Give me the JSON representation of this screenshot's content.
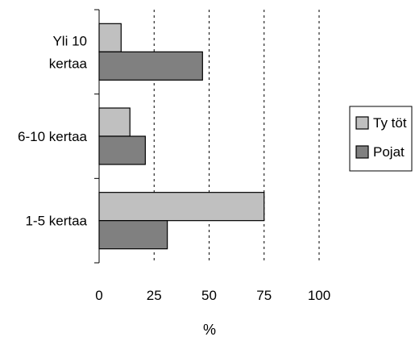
{
  "chart_data": {
    "type": "bar",
    "orientation": "horizontal",
    "categories": [
      {
        "lines": [
          "Yli 10",
          "kertaa"
        ]
      },
      {
        "lines": [
          "6-10 kertaa"
        ]
      },
      {
        "lines": [
          "1-5 kertaa"
        ]
      }
    ],
    "series": [
      {
        "name": "Ty töt",
        "values": [
          10,
          14,
          75
        ],
        "color": "#c0c0c0"
      },
      {
        "name": "Pojat",
        "values": [
          47,
          21,
          31
        ],
        "color": "#808080"
      }
    ],
    "xlabel": "%",
    "xlim": [
      0,
      100
    ],
    "xticks": [
      "0",
      "25",
      "50",
      "75",
      "100"
    ],
    "grid": "vertical dotted",
    "legend": "right"
  }
}
